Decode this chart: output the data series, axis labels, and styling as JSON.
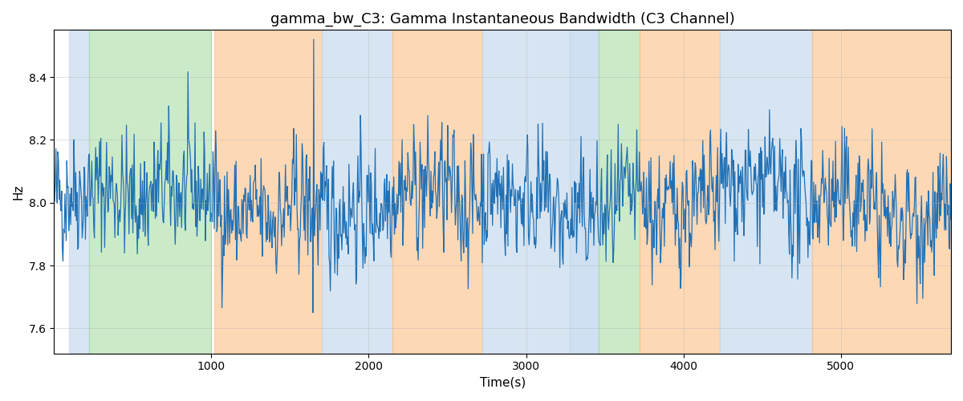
{
  "title": "gamma_bw_C3: Gamma Instantaneous Bandwidth (C3 Channel)",
  "xlabel": "Time(s)",
  "ylabel": "Hz",
  "xlim": [
    0,
    5700
  ],
  "ylim": [
    7.52,
    8.55
  ],
  "yticks": [
    7.6,
    7.8,
    8.0,
    8.2,
    8.4
  ],
  "xticks": [
    1000,
    2000,
    3000,
    4000,
    5000
  ],
  "signal_mean": 8.0,
  "signal_std": 0.1,
  "signal_seed": 42,
  "signal_n": 1400,
  "signal_tmax": 5700,
  "line_color": "#2171b5",
  "line_width": 0.9,
  "bg_bands": [
    {
      "xmin": 95,
      "xmax": 225,
      "color": "#c6dbef",
      "alpha": 0.7
    },
    {
      "xmin": 225,
      "xmax": 1000,
      "color": "#a1d99b",
      "alpha": 0.55
    },
    {
      "xmin": 1020,
      "xmax": 1700,
      "color": "#fdbe85",
      "alpha": 0.6
    },
    {
      "xmin": 1700,
      "xmax": 2150,
      "color": "#c6dbef",
      "alpha": 0.7
    },
    {
      "xmin": 2150,
      "xmax": 2720,
      "color": "#fdbe85",
      "alpha": 0.6
    },
    {
      "xmin": 2720,
      "xmax": 3280,
      "color": "#c6dbef",
      "alpha": 0.7
    },
    {
      "xmin": 3280,
      "xmax": 3460,
      "color": "#c6dbef",
      "alpha": 0.85
    },
    {
      "xmin": 3460,
      "xmax": 3720,
      "color": "#a1d99b",
      "alpha": 0.55
    },
    {
      "xmin": 3720,
      "xmax": 4230,
      "color": "#fdbe85",
      "alpha": 0.6
    },
    {
      "xmin": 4230,
      "xmax": 4820,
      "color": "#c6dbef",
      "alpha": 0.7
    },
    {
      "xmin": 4820,
      "xmax": 5700,
      "color": "#fdbe85",
      "alpha": 0.6
    }
  ],
  "figsize": [
    12,
    5
  ],
  "dpi": 100,
  "title_fontsize": 13,
  "grid_color": "#b0b0b0",
  "grid_alpha": 0.5,
  "grid_linewidth": 0.5
}
